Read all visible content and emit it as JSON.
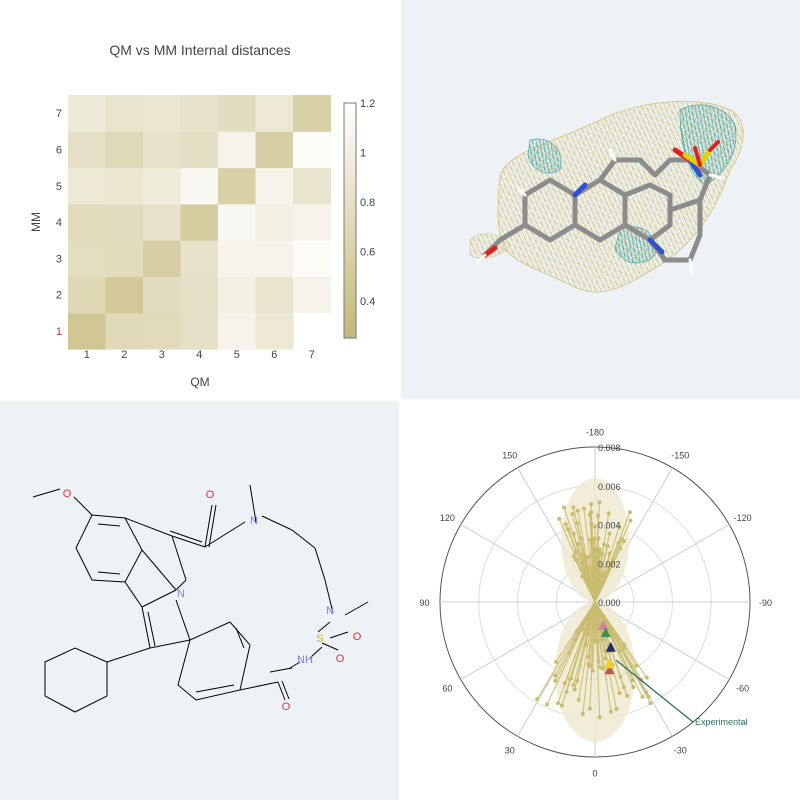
{
  "chart_data": [
    {
      "type": "heatmap",
      "title": "QM vs MM Internal distances",
      "xlabel": "QM",
      "ylabel": "MM",
      "x_ticks": [
        "1",
        "2",
        "3",
        "4",
        "5",
        "6",
        "7"
      ],
      "y_ticks": [
        "1",
        "2",
        "3",
        "4",
        "5",
        "6",
        "7"
      ],
      "colorbar": {
        "min": 0.25,
        "max": 1.2,
        "ticks": [
          "0.4",
          "0.6",
          "0.8",
          "1",
          "1.2"
        ],
        "low_color": "#c3b777",
        "high_color": "#ffffff"
      },
      "z": [
        [
          0.45,
          0.7,
          0.72,
          0.8,
          1.05,
          0.9,
          null
        ],
        [
          0.68,
          0.48,
          0.75,
          0.8,
          1.0,
          0.85,
          1.05
        ],
        [
          0.76,
          0.74,
          0.55,
          0.82,
          1.05,
          1.05,
          1.15
        ],
        [
          0.74,
          0.75,
          0.82,
          0.53,
          1.1,
          1.0,
          1.05
        ],
        [
          0.9,
          0.88,
          0.95,
          1.1,
          0.58,
          1.05,
          0.85
        ],
        [
          0.8,
          0.7,
          0.82,
          0.78,
          1.05,
          0.57,
          1.15
        ],
        [
          0.92,
          0.85,
          0.88,
          0.82,
          0.75,
          0.9,
          0.58
        ]
      ]
    },
    {
      "type": "polar_scatter",
      "radial_ticks": [
        "0.000",
        "0.002",
        "0.004",
        "0.006",
        "0.008"
      ],
      "radial_range": [
        0,
        0.008
      ],
      "angle_labels": [
        {
          "deg": 0,
          "text": "0"
        },
        {
          "deg": 30,
          "text": "30"
        },
        {
          "deg": 60,
          "text": "60"
        },
        {
          "deg": 90,
          "text": "90"
        },
        {
          "deg": 120,
          "text": "120"
        },
        {
          "deg": 150,
          "text": "150"
        },
        {
          "deg": 180,
          "text": "-180"
        },
        {
          "deg": 210,
          "text": "-150"
        },
        {
          "deg": 240,
          "text": "-120"
        },
        {
          "deg": 270,
          "text": "-90"
        },
        {
          "deg": 300,
          "text": "-60"
        },
        {
          "deg": 330,
          "text": "-30"
        }
      ],
      "series_color": "#c9bc6e",
      "markers": [
        {
          "angle": -12,
          "r": 0.0036,
          "color": "#c0545b"
        },
        {
          "angle": -19,
          "r": 0.0013,
          "color": "#d47fa8"
        },
        {
          "angle": -19,
          "r": 0.0017,
          "color": "#3f8f4f"
        },
        {
          "angle": -19,
          "r": 0.0025,
          "color": "#1e2f66"
        },
        {
          "angle": -13,
          "r": 0.0033,
          "color": "#f0d020"
        }
      ],
      "annotation": {
        "text": "Experimental",
        "angle": -20,
        "r": 0.0032,
        "color": "#2f6f6a"
      }
    }
  ],
  "structure2d": {
    "atoms": [
      {
        "id": "n1",
        "label": "N",
        "color": "#7f7fe6"
      },
      {
        "id": "n2",
        "label": "N",
        "color": "#7f7fe6"
      },
      {
        "id": "n3",
        "label": "N",
        "color": "#7f7fe6"
      },
      {
        "id": "nh",
        "label": "NH",
        "color": "#7f7fe6"
      },
      {
        "id": "s",
        "label": "S",
        "color": "#e0b000"
      },
      {
        "id": "o1",
        "label": "O",
        "color": "#e03030"
      },
      {
        "id": "o2",
        "label": "O",
        "color": "#e03030"
      },
      {
        "id": "o3",
        "label": "O",
        "color": "#e03030"
      },
      {
        "id": "o4",
        "label": "O",
        "color": "#e03030"
      },
      {
        "id": "o5",
        "label": "O",
        "color": "#e03030"
      }
    ]
  }
}
